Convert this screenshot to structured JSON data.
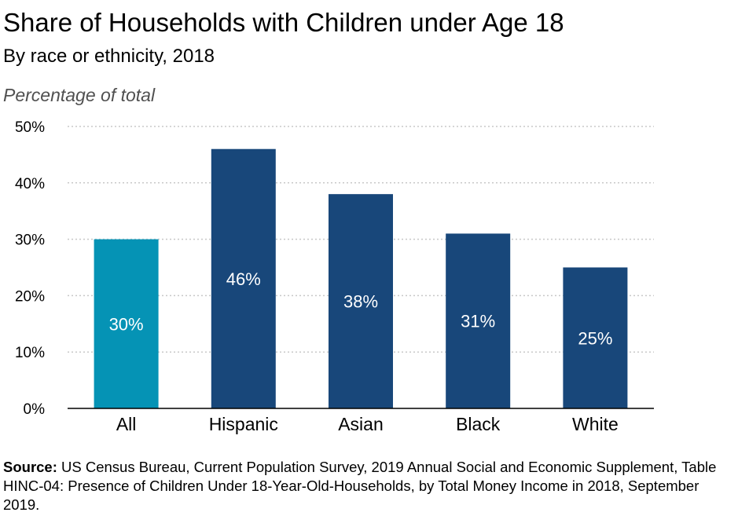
{
  "chart_data": {
    "type": "bar",
    "title": "Share of Households with Children under Age 18",
    "subtitle": "By race or ethnicity, 2018",
    "ylabel": "Percentage of total",
    "xlabel": "",
    "categories": [
      "All",
      "Hispanic",
      "Asian",
      "Black",
      "White"
    ],
    "values": [
      30,
      46,
      38,
      31,
      25
    ],
    "value_labels": [
      "30%",
      "46%",
      "38%",
      "31%",
      "25%"
    ],
    "ylim": [
      0,
      50
    ],
    "yticks": [
      0,
      10,
      20,
      30,
      40,
      50
    ],
    "ytick_labels": [
      "0%",
      "10%",
      "20%",
      "30%",
      "40%",
      "50%"
    ],
    "grid": true,
    "colors": {
      "highlight": "#0593b5",
      "bar": "#18477a",
      "grid": "#c8c8c8",
      "axis": "#000000",
      "value_label": "#ffffff"
    }
  },
  "source": {
    "label": "Source:",
    "text": "US Census Bureau, Current Population Survey, 2019 Annual Social and Economic Supplement, Table HINC-04: Presence of Children Under 18-Year-Old-Households, by Total Money Income in 2018, September 2019."
  }
}
